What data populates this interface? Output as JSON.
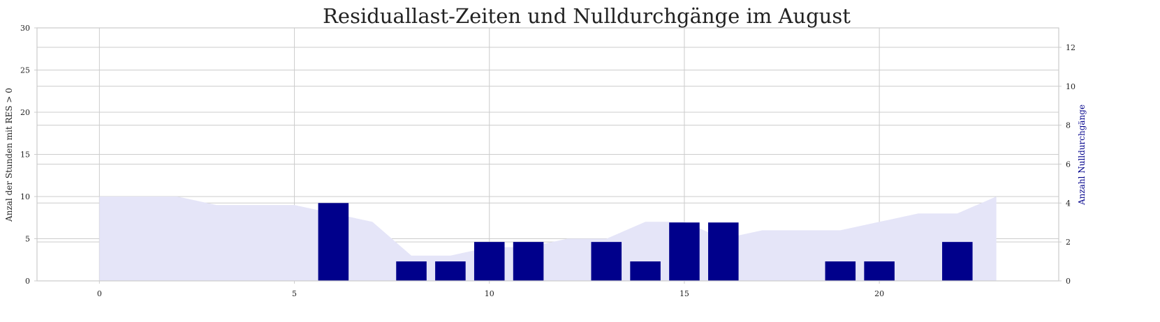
{
  "chart_data": {
    "type": "bar",
    "title": "Residuallast-Zeiten und Nulldurchgänge im August",
    "xlabel": "",
    "x": [
      0,
      1,
      2,
      3,
      4,
      5,
      6,
      7,
      8,
      9,
      10,
      11,
      12,
      13,
      14,
      15,
      16,
      17,
      18,
      19,
      20,
      21,
      22,
      23
    ],
    "x_ticks": [
      0,
      5,
      10,
      15,
      20
    ],
    "xlim": [
      -1.6,
      24.6
    ],
    "area_series": {
      "name": "",
      "ylabel": "Anzal der Stunden mit RES > 0",
      "ylim": [
        0,
        30
      ],
      "y_ticks": [
        0,
        5,
        10,
        15,
        20,
        25,
        30
      ],
      "values": [
        10,
        10,
        10,
        9,
        9,
        9,
        8,
        7,
        3,
        3,
        4,
        4,
        5,
        5,
        7,
        7,
        5,
        6,
        6,
        6,
        7,
        8,
        8,
        10
      ],
      "color": "#e5e5f8"
    },
    "bar_series": {
      "name": "",
      "ylabel": "Anzahl Nulldurchgänge",
      "ylabel_color": "#00008b",
      "ylim": [
        0,
        13
      ],
      "y_ticks": [
        0,
        2,
        4,
        6,
        8,
        10,
        12
      ],
      "values": [
        0,
        0,
        0,
        0,
        0,
        0,
        4,
        0,
        1,
        1,
        2,
        2,
        0,
        2,
        1,
        3,
        3,
        0,
        0,
        1,
        1,
        0,
        2,
        0
      ],
      "color": "#00008b"
    },
    "grid": true
  }
}
